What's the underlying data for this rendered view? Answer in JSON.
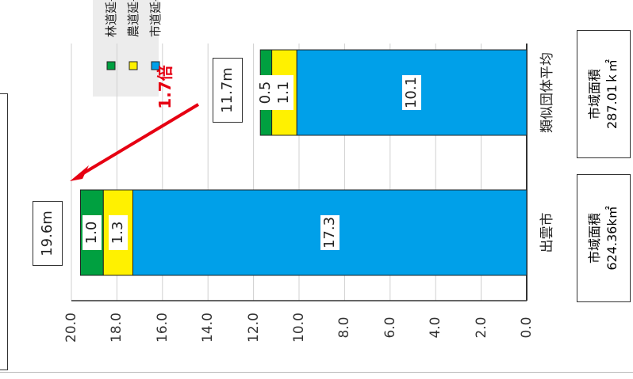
{
  "chart_data": {
    "type": "bar",
    "orientation": "horizontal-rotated",
    "categories": [
      "出雲市",
      "類似団体平均"
    ],
    "series": [
      {
        "name": "市道延長",
        "color": "#00a0e9",
        "values": [
          17.3,
          10.1
        ]
      },
      {
        "name": "農道延長",
        "color": "#fff100",
        "values": [
          1.3,
          1.1
        ]
      },
      {
        "name": "林道延長",
        "color": "#00a040",
        "values": [
          1.0,
          0.5
        ]
      }
    ],
    "totals": [
      "19.6m",
      "11.7m"
    ],
    "ylim": [
      0,
      20
    ],
    "ticks": [
      "0.0",
      "2.0",
      "4.0",
      "6.0",
      "8.0",
      "10.0",
      "12.0",
      "14.0",
      "16.0",
      "18.0",
      "20.0"
    ],
    "grid": true,
    "legend": "top-left",
    "annotation": "1.7倍",
    "annotation_color": "#e60012",
    "area_notes": [
      {
        "label": "市域面積",
        "value": "624.36k㎡"
      },
      {
        "label": "市域面積",
        "value": "287.01ｋ㎡"
      }
    ]
  }
}
